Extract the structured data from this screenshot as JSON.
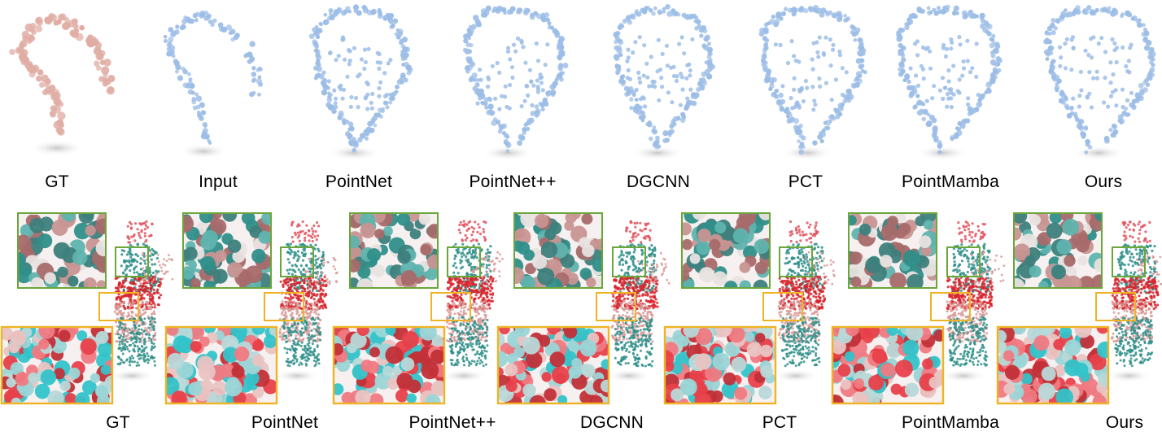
{
  "top_row": {
    "labels": [
      "GT",
      "Input",
      "PointNet",
      "PointNet++",
      "DGCNN",
      "PCT",
      "PointMamba",
      "Ours"
    ]
  },
  "bottom_row": {
    "labels": [
      "GT",
      "PointNet",
      "PointNet++",
      "DGCNN",
      "PCT",
      "PointMamba",
      "Ours"
    ]
  },
  "colors": {
    "gt_points": "#e0ada4",
    "pred_points": "#9cbde6",
    "teal": "#2f8f8a",
    "red": "#d8232b",
    "pink": "#d89a98",
    "cyan": "#33c3c9",
    "zoom_green": "#6aa63a",
    "zoom_orange": "#f0b323"
  }
}
